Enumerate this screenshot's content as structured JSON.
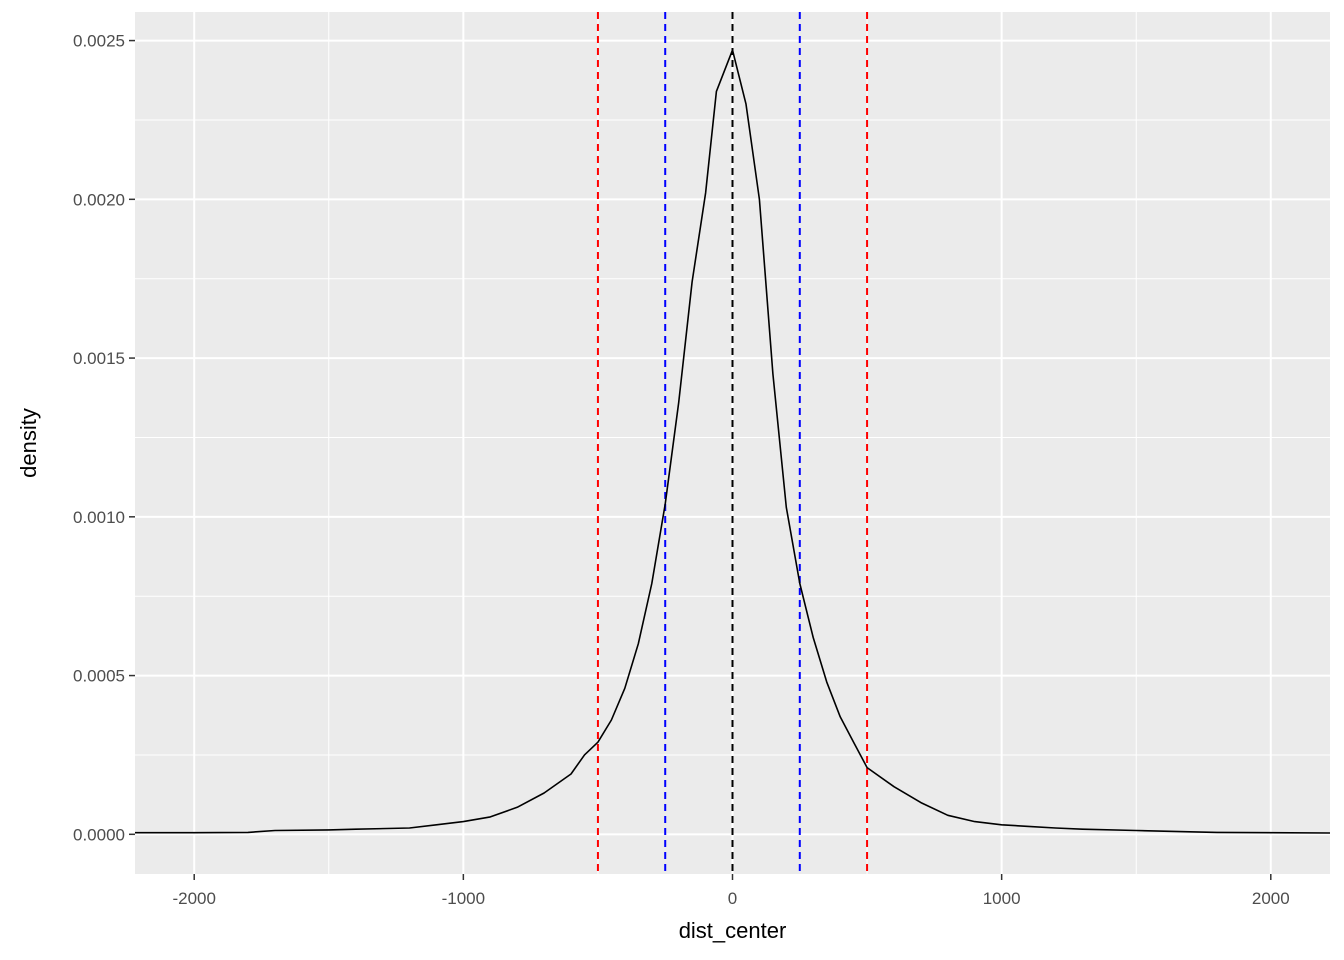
{
  "chart_data": {
    "type": "line",
    "title": "",
    "xlabel": "dist_center",
    "ylabel": "density",
    "xlim": [
      -2220,
      2220
    ],
    "ylim": [
      -0.000125,
      0.00259
    ],
    "x_ticks": [
      -2000,
      -1000,
      0,
      1000,
      2000
    ],
    "x_tick_labels": [
      "-2000",
      "-1000",
      "0",
      "1000",
      "2000"
    ],
    "y_ticks": [
      0,
      0.0005,
      0.001,
      0.0015,
      0.002,
      0.0025
    ],
    "y_tick_labels": [
      "0.0000",
      "0.0005",
      "0.0010",
      "0.0015",
      "0.0020",
      "0.0025"
    ],
    "grid": true,
    "legend": "none",
    "panel_background": "#ebebeb",
    "grid_color": "#ffffff",
    "series": [
      {
        "color": "#000000",
        "x": [
          -2220,
          -2000,
          -1800,
          -1700,
          -1500,
          -1400,
          -1200,
          -1100,
          -1000,
          -900,
          -800,
          -700,
          -600,
          -550,
          -500,
          -450,
          -400,
          -350,
          -300,
          -250,
          -200,
          -150,
          -100,
          -60,
          0,
          50,
          100,
          150,
          200,
          250,
          300,
          350,
          400,
          450,
          500,
          600,
          700,
          800,
          900,
          1000,
          1100,
          1200,
          1300,
          1500,
          1700,
          1800,
          2000,
          2220
        ],
        "y": [
          5e-06,
          5e-06,
          6e-06,
          1.2e-05,
          1.4e-05,
          1.6e-05,
          2e-05,
          3e-05,
          4e-05,
          5.5e-05,
          8.5e-05,
          0.00013,
          0.00019,
          0.00025,
          0.00029,
          0.00036,
          0.00046,
          0.0006,
          0.00079,
          0.00104,
          0.00136,
          0.00174,
          0.00202,
          0.00234,
          0.00247,
          0.0023,
          0.002,
          0.00145,
          0.00103,
          0.00079,
          0.00062,
          0.00048,
          0.00037,
          0.00029,
          0.00021,
          0.00015,
          0.0001,
          6e-05,
          4e-05,
          3e-05,
          2.5e-05,
          2e-05,
          1.6e-05,
          1.2e-05,
          8e-06,
          6e-06,
          5e-06,
          4e-06
        ]
      }
    ],
    "vlines": [
      {
        "x": -500,
        "color": "#ff0000",
        "style": "dashed"
      },
      {
        "x": -250,
        "color": "#0000ff",
        "style": "dashed"
      },
      {
        "x": 0,
        "color": "#000000",
        "style": "dashed"
      },
      {
        "x": 250,
        "color": "#0000ff",
        "style": "dashed"
      },
      {
        "x": 500,
        "color": "#ff0000",
        "style": "dashed"
      }
    ]
  }
}
